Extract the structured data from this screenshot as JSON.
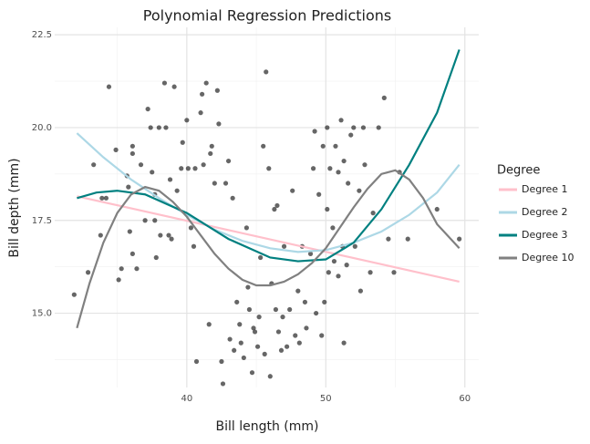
{
  "chart_data": {
    "type": "scatter",
    "title": "Polynomial Regression Predictions",
    "x_label": "Bill length (mm)",
    "y_label": "Bill depth (mm)",
    "legend_title": "Degree",
    "legend_position": "right",
    "grid": true,
    "xlim": [
      30.5,
      61
    ],
    "ylim": [
      13.0,
      22.7
    ],
    "xticks": [
      40,
      50,
      60
    ],
    "yticks": [
      {
        "value": 15,
        "label": "15.0"
      },
      17.5,
      {
        "value": 20,
        "label": "20.0"
      },
      22.5
    ],
    "x_minor_ticks": [
      35,
      45,
      55
    ],
    "y_minor_ticks": [
      13.75,
      16.25,
      18.75,
      21.25
    ],
    "series": [
      {
        "type": "scatter",
        "color": "#333333",
        "x": [
          31.9,
          32.9,
          33.3,
          34.4,
          33.8,
          33.9,
          34.2,
          34.9,
          35.1,
          35.3,
          36.1,
          36.1,
          35.7,
          35.8,
          35.9,
          36.1,
          36.4,
          36.7,
          37.0,
          37.2,
          37.4,
          37.5,
          37.7,
          37.7,
          37.8,
          38.0,
          38.1,
          38.4,
          38.5,
          38.7,
          38.8,
          38.9,
          39.1,
          39.3,
          39.6,
          39.7,
          40.0,
          40.1,
          40.3,
          40.5,
          40.6,
          40.7,
          41.0,
          41.1,
          41.2,
          41.4,
          41.6,
          41.7,
          41.8,
          42.0,
          42.2,
          42.3,
          42.5,
          42.6,
          42.8,
          43.0,
          43.1,
          43.3,
          43.4,
          43.6,
          43.8,
          43.9,
          44.1,
          44.3,
          44.4,
          44.5,
          44.7,
          44.8,
          44.9,
          45.1,
          45.2,
          45.3,
          45.5,
          45.6,
          45.7,
          45.9,
          46.0,
          46.1,
          46.3,
          46.4,
          46.5,
          46.6,
          46.8,
          46.9,
          47.0,
          47.2,
          47.4,
          47.6,
          47.8,
          48.0,
          48.1,
          48.3,
          48.5,
          48.6,
          48.9,
          49.1,
          49.2,
          49.3,
          49.5,
          49.7,
          49.8,
          49.9,
          50.1,
          50.2,
          50.3,
          50.5,
          50.6,
          50.7,
          50.9,
          51.1,
          51.2,
          51.3,
          51.5,
          51.6,
          51.8,
          52.0,
          52.1,
          52.4,
          52.5,
          52.7,
          52.8,
          53.2,
          53.4,
          53.8,
          54.2,
          54.5,
          54.9,
          55.3,
          55.9,
          58.0,
          59.6,
          51.3,
          50.9,
          50.1
        ],
        "values": [
          15.5,
          16.1,
          19.0,
          21.1,
          17.1,
          18.1,
          18.1,
          19.4,
          15.9,
          16.2,
          19.5,
          19.3,
          18.7,
          18.4,
          17.2,
          16.6,
          16.2,
          19.0,
          17.5,
          20.5,
          20.0,
          18.8,
          18.2,
          17.5,
          16.5,
          20.0,
          17.1,
          21.2,
          20.0,
          17.1,
          18.6,
          17.0,
          21.1,
          18.3,
          18.9,
          19.6,
          20.2,
          18.9,
          17.3,
          16.8,
          18.9,
          13.7,
          20.4,
          20.9,
          19.0,
          21.2,
          14.7,
          19.3,
          19.5,
          18.5,
          21.0,
          20.1,
          13.7,
          13.1,
          18.5,
          19.1,
          14.3,
          18.1,
          14.0,
          15.3,
          14.7,
          14.2,
          13.8,
          17.3,
          15.7,
          15.1,
          13.4,
          14.6,
          14.5,
          14.1,
          14.9,
          16.5,
          19.5,
          13.9,
          21.5,
          18.9,
          13.3,
          15.8,
          17.8,
          15.1,
          17.9,
          14.5,
          14.0,
          14.9,
          16.8,
          14.1,
          15.1,
          18.3,
          14.4,
          15.6,
          14.2,
          16.8,
          15.3,
          14.6,
          16.6,
          18.9,
          19.9,
          15.0,
          18.2,
          14.4,
          19.5,
          15.3,
          20.0,
          16.1,
          18.9,
          17.3,
          16.4,
          19.5,
          18.8,
          20.2,
          16.8,
          19.1,
          16.3,
          18.5,
          19.8,
          20.0,
          16.8,
          18.3,
          15.6,
          20.0,
          19.0,
          16.1,
          17.7,
          20.0,
          20.8,
          17.0,
          16.1,
          18.8,
          17.0,
          17.8,
          17.0,
          14.2,
          16.0,
          17.8
        ]
      },
      {
        "type": "line",
        "name": "Degree 1",
        "color": "#ffc0cb",
        "x": [
          32.1,
          59.6
        ],
        "values": [
          18.15,
          15.85
        ]
      },
      {
        "type": "line",
        "name": "Degree 2",
        "color": "#add8e6",
        "x": [
          32.1,
          34,
          36,
          38,
          40,
          42,
          44,
          46,
          48,
          50,
          52,
          54,
          56,
          58,
          59.6
        ],
        "values": [
          19.85,
          19.2,
          18.6,
          18.1,
          17.65,
          17.25,
          16.95,
          16.75,
          16.65,
          16.7,
          16.9,
          17.2,
          17.65,
          18.25,
          19.0
        ]
      },
      {
        "type": "line",
        "name": "Degree 3",
        "color": "#008080",
        "x": [
          32.1,
          33.5,
          35,
          37,
          40,
          43,
          46,
          48,
          50,
          52,
          54,
          56,
          58,
          59.6
        ],
        "values": [
          18.1,
          18.25,
          18.3,
          18.2,
          17.7,
          17.0,
          16.5,
          16.4,
          16.45,
          16.9,
          17.8,
          19.0,
          20.4,
          22.1
        ]
      },
      {
        "type": "line",
        "name": "Degree 10",
        "color": "#808080",
        "x": [
          32.1,
          33,
          34,
          35,
          36,
          37,
          38,
          39,
          40,
          41,
          42,
          43,
          44,
          45,
          46,
          47,
          48,
          49,
          50,
          51,
          52,
          53,
          54,
          55,
          56,
          57,
          58,
          59.6
        ],
        "values": [
          14.6,
          15.8,
          16.9,
          17.7,
          18.2,
          18.4,
          18.3,
          18.0,
          17.6,
          17.1,
          16.6,
          16.2,
          15.9,
          15.75,
          15.75,
          15.85,
          16.05,
          16.35,
          16.75,
          17.3,
          17.85,
          18.35,
          18.75,
          18.85,
          18.6,
          18.1,
          17.4,
          16.75
        ]
      }
    ]
  }
}
